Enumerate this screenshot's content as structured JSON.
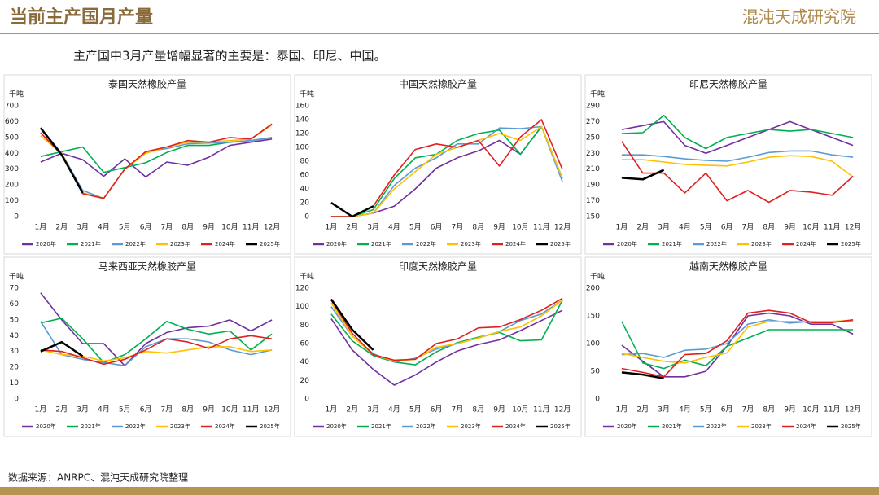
{
  "header": {
    "title": "当前主产国月产量",
    "logo": "混沌天成研究院",
    "subtitle": "主产国中3月产量增幅显著的主要是：泰国、印尼、中国。",
    "source": "数据来源：ANRPC、混沌天成研究院整理"
  },
  "chart_data": [
    {
      "type": "line",
      "title": "泰国天然橡胶产量",
      "ylabel": "千吨",
      "categories": [
        "1月",
        "2月",
        "3月",
        "4月",
        "5月",
        "6月",
        "7月",
        "8月",
        "9月",
        "10月",
        "11月",
        "12月"
      ],
      "ylim": [
        0,
        700
      ],
      "yticks": [
        0,
        100,
        200,
        300,
        400,
        500,
        600,
        700
      ],
      "legend": "bottom",
      "series": [
        {
          "name": "2020年",
          "color": "#7030a0",
          "values": [
            345,
            400,
            360,
            255,
            365,
            250,
            345,
            325,
            375,
            450,
            470,
            490
          ]
        },
        {
          "name": "2021年",
          "color": "#00b050",
          "values": [
            380,
            410,
            440,
            280,
            310,
            340,
            405,
            450,
            450,
            470,
            480,
            500
          ]
        },
        {
          "name": "2022年",
          "color": "#5b9bd5",
          "values": [
            560,
            400,
            165,
            115,
            300,
            410,
            430,
            460,
            465,
            470,
            480,
            500
          ]
        },
        {
          "name": "2023年",
          "color": "#ffc000",
          "values": [
            510,
            400,
            150,
            115,
            300,
            400,
            440,
            470,
            470,
            480,
            490,
            580
          ]
        },
        {
          "name": "2024年",
          "color": "#e02020",
          "values": [
            530,
            390,
            145,
            115,
            300,
            410,
            440,
            480,
            470,
            500,
            490,
            585
          ]
        },
        {
          "name": "2025年",
          "color": "#000000",
          "values": [
            560,
            390,
            150,
            null,
            null,
            null,
            null,
            null,
            null,
            null,
            null,
            null
          ]
        }
      ]
    },
    {
      "type": "line",
      "title": "中国天然橡胶产量",
      "ylabel": "千吨",
      "categories": [
        "1月",
        "2月",
        "3月",
        "4月",
        "5月",
        "6月",
        "7月",
        "8月",
        "9月",
        "10月",
        "11月",
        "12月"
      ],
      "ylim": [
        0,
        160
      ],
      "yticks": [
        0,
        20,
        40,
        60,
        80,
        100,
        120,
        140,
        160
      ],
      "legend": "bottom",
      "series": [
        {
          "name": "2020年",
          "color": "#7030a0",
          "values": [
            0,
            0,
            5,
            15,
            40,
            70,
            85,
            95,
            110,
            90,
            130,
            55
          ]
        },
        {
          "name": "2021年",
          "color": "#00b050",
          "values": [
            0,
            0,
            10,
            55,
            85,
            90,
            110,
            120,
            125,
            90,
            130,
            55
          ]
        },
        {
          "name": "2022年",
          "color": "#5b9bd5",
          "values": [
            0,
            0,
            5,
            45,
            70,
            85,
            105,
            105,
            128,
            127,
            130,
            50
          ]
        },
        {
          "name": "2023年",
          "color": "#ffc000",
          "values": [
            0,
            0,
            5,
            40,
            65,
            90,
            100,
            110,
            120,
            110,
            130,
            55
          ]
        },
        {
          "name": "2024年",
          "color": "#e02020",
          "values": [
            0,
            0,
            15,
            60,
            97,
            105,
            100,
            110,
            73,
            115,
            140,
            68
          ]
        },
        {
          "name": "2025年",
          "color": "#000000",
          "values": [
            20,
            0,
            15,
            null,
            null,
            null,
            null,
            null,
            null,
            null,
            null,
            null
          ]
        }
      ]
    },
    {
      "type": "line",
      "title": "印尼天然橡胶产量",
      "ylabel": "千吨",
      "categories": [
        "1月",
        "2月",
        "3月",
        "4月",
        "5月",
        "6月",
        "7月",
        "8月",
        "9月",
        "10月",
        "11月",
        "12月"
      ],
      "ylim": [
        150,
        290
      ],
      "yticks": [
        150,
        170,
        190,
        210,
        230,
        250,
        270,
        290
      ],
      "legend": "bottom",
      "series": [
        {
          "name": "2020年",
          "color": "#7030a0",
          "values": [
            260,
            265,
            270,
            240,
            230,
            240,
            250,
            260,
            270,
            260,
            250,
            240
          ]
        },
        {
          "name": "2021年",
          "color": "#00b050",
          "values": [
            255,
            256,
            278,
            250,
            236,
            250,
            255,
            260,
            258,
            260,
            255,
            250
          ]
        },
        {
          "name": "2022年",
          "color": "#5b9bd5",
          "values": [
            228,
            228,
            226,
            223,
            221,
            220,
            225,
            231,
            233,
            233,
            228,
            225
          ]
        },
        {
          "name": "2023年",
          "color": "#ffc000",
          "values": [
            222,
            222,
            219,
            216,
            215,
            214,
            219,
            225,
            227,
            226,
            220,
            200
          ]
        },
        {
          "name": "2024年",
          "color": "#e02020",
          "values": [
            245,
            205,
            205,
            180,
            205,
            170,
            183,
            168,
            183,
            181,
            177,
            201
          ]
        },
        {
          "name": "2025年",
          "color": "#000000",
          "values": [
            199,
            197,
            209,
            null,
            null,
            null,
            null,
            null,
            null,
            null,
            null,
            null
          ]
        }
      ]
    },
    {
      "type": "line",
      "title": "马来西亚天然橡胶产量",
      "ylabel": "千吨",
      "categories": [
        "1月",
        "2月",
        "3月",
        "4月",
        "5月",
        "6月",
        "7月",
        "8月",
        "9月",
        "10月",
        "11月",
        "12月"
      ],
      "ylim": [
        0,
        70
      ],
      "yticks": [
        0,
        10,
        20,
        30,
        40,
        50,
        60,
        70
      ],
      "legend": "bottom",
      "series": [
        {
          "name": "2020年",
          "color": "#7030a0",
          "values": [
            67,
            50,
            35,
            35,
            21,
            35,
            42,
            45,
            46,
            50,
            43,
            50
          ]
        },
        {
          "name": "2021年",
          "color": "#00b050",
          "values": [
            48,
            51,
            38,
            23,
            28,
            38,
            49,
            44,
            41,
            43,
            31,
            41
          ]
        },
        {
          "name": "2022年",
          "color": "#5b9bd5",
          "values": [
            49,
            28,
            25,
            23,
            21,
            33,
            38,
            38,
            36,
            31,
            28,
            31
          ]
        },
        {
          "name": "2023年",
          "color": "#ffc000",
          "values": [
            31,
            28,
            27,
            24,
            26,
            30,
            29,
            31,
            33,
            33,
            30,
            31
          ]
        },
        {
          "name": "2024年",
          "color": "#e02020",
          "values": [
            31,
            30,
            26,
            22,
            25,
            31,
            38,
            36,
            32,
            38,
            40,
            38
          ]
        },
        {
          "name": "2025年",
          "color": "#000000",
          "values": [
            30,
            36,
            27,
            null,
            null,
            null,
            null,
            null,
            null,
            null,
            null,
            null
          ]
        }
      ]
    },
    {
      "type": "line",
      "title": "印度天然橡胶产量",
      "ylabel": "千吨",
      "categories": [
        "1月",
        "2月",
        "3月",
        "4月",
        "5月",
        "6月",
        "7月",
        "8月",
        "9月",
        "10月",
        "11月",
        "12月"
      ],
      "ylim": [
        0,
        120
      ],
      "yticks": [
        0,
        20,
        40,
        60,
        80,
        100,
        120
      ],
      "legend": "bottom",
      "series": [
        {
          "name": "2020年",
          "color": "#7030a0",
          "values": [
            87,
            53,
            32,
            15,
            26,
            40,
            52,
            59,
            64,
            74,
            85,
            96
          ]
        },
        {
          "name": "2021年",
          "color": "#00b050",
          "values": [
            92,
            63,
            47,
            40,
            37,
            51,
            61,
            67,
            72,
            63,
            64,
            107
          ]
        },
        {
          "name": "2022年",
          "color": "#5b9bd5",
          "values": [
            100,
            68,
            49,
            40,
            44,
            54,
            60,
            66,
            73,
            85,
            92,
            107
          ]
        },
        {
          "name": "2023年",
          "color": "#ffc000",
          "values": [
            104,
            68,
            48,
            41,
            43,
            56,
            60,
            66,
            73,
            78,
            90,
            107
          ]
        },
        {
          "name": "2024年",
          "color": "#e02020",
          "values": [
            107,
            71,
            48,
            42,
            43,
            60,
            65,
            77,
            78,
            86,
            96,
            109
          ]
        },
        {
          "name": "2025年",
          "color": "#000000",
          "values": [
            108,
            75,
            53,
            null,
            null,
            null,
            null,
            null,
            null,
            null,
            null,
            null
          ]
        }
      ]
    },
    {
      "type": "line",
      "title": "越南天然橡胶产量",
      "ylabel": "千吨",
      "categories": [
        "1月",
        "2月",
        "3月",
        "4月",
        "5月",
        "6月",
        "7月",
        "8月",
        "9月",
        "10月",
        "11月",
        "12月"
      ],
      "ylim": [
        0,
        200
      ],
      "yticks": [
        0,
        50,
        100,
        150,
        200
      ],
      "legend": "bottom",
      "series": [
        {
          "name": "2020年",
          "color": "#7030a0",
          "values": [
            97,
            68,
            40,
            40,
            50,
            95,
            150,
            155,
            150,
            135,
            135,
            117
          ]
        },
        {
          "name": "2021年",
          "color": "#00b050",
          "values": [
            140,
            65,
            55,
            70,
            60,
            95,
            110,
            125,
            125,
            125,
            125,
            125
          ]
        },
        {
          "name": "2022年",
          "color": "#5b9bd5",
          "values": [
            80,
            82,
            75,
            88,
            90,
            100,
            135,
            143,
            137,
            140,
            140,
            140
          ]
        },
        {
          "name": "2023年",
          "color": "#ffc000",
          "values": [
            82,
            75,
            68,
            65,
            75,
            83,
            130,
            140,
            140,
            140,
            140,
            142
          ]
        },
        {
          "name": "2024年",
          "color": "#e02020",
          "values": [
            55,
            48,
            40,
            80,
            82,
            105,
            155,
            160,
            155,
            138,
            138,
            143
          ]
        },
        {
          "name": "2025年",
          "color": "#000000",
          "values": [
            48,
            44,
            37,
            null,
            null,
            null,
            null,
            null,
            null,
            null,
            null,
            null
          ]
        }
      ]
    }
  ]
}
